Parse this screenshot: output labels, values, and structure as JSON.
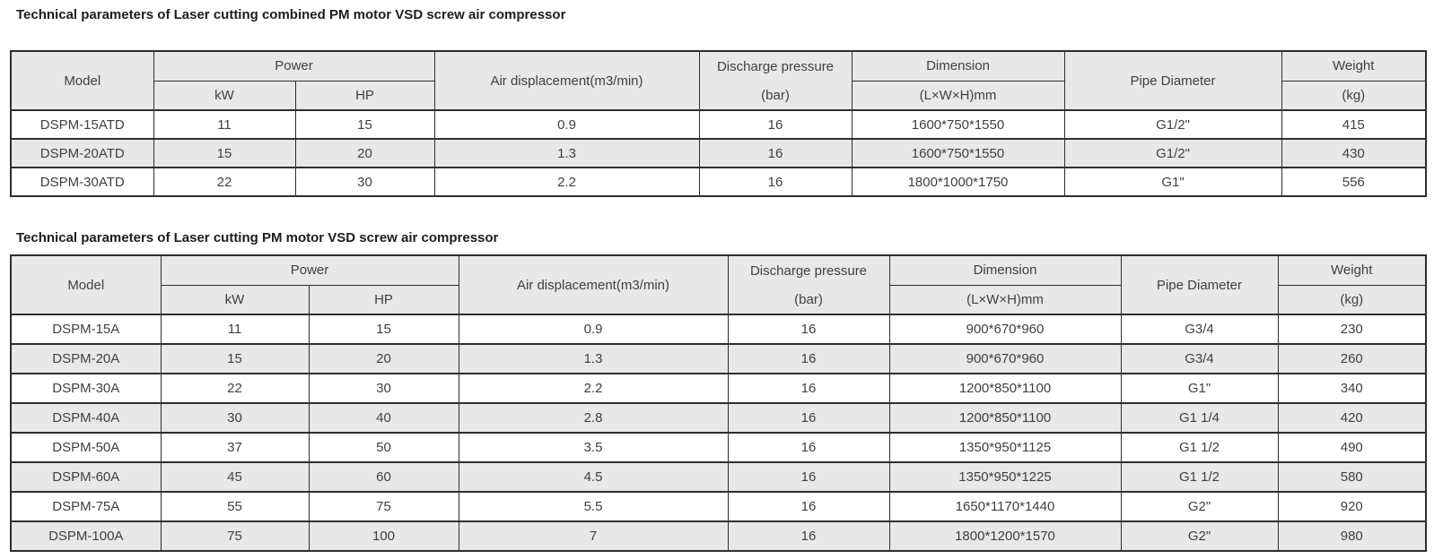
{
  "sections": [
    {
      "title": "Technical parameters of Laser cutting combined PM motor VSD screw air compressor",
      "header": {
        "model": "Model",
        "power": "Power",
        "kw": "kW",
        "hp": "HP",
        "air_displacement": "Air displacement(m3/min)",
        "discharge_pressure": "Discharge pressure",
        "discharge_pressure_unit": "(bar)",
        "dimension": "Dimension",
        "dimension_unit": "(L×W×H)mm",
        "pipe_diameter": "Pipe Diameter",
        "weight": "Weight",
        "weight_unit": "(kg)"
      },
      "rows": [
        [
          "DSPM-15ATD",
          "11",
          "15",
          "0.9",
          "16",
          "1600*750*1550",
          "G1/2\"",
          "415"
        ],
        [
          "DSPM-20ATD",
          "15",
          "20",
          "1.3",
          "16",
          "1600*750*1550",
          "G1/2\"",
          "430"
        ],
        [
          "DSPM-30ATD",
          "22",
          "30",
          "2.2",
          "16",
          "1800*1000*1750",
          "G1\"",
          "556"
        ]
      ]
    },
    {
      "title": "Technical parameters of Laser cutting PM motor VSD screw air compressor",
      "header": {
        "model": "Model",
        "power": "Power",
        "kw": "kW",
        "hp": "HP",
        "air_displacement": "Air displacement(m3/min)",
        "discharge_pressure": "Discharge pressure",
        "discharge_pressure_unit": "(bar)",
        "dimension": "Dimension",
        "dimension_unit": "(L×W×H)mm",
        "pipe_diameter": "Pipe Diameter",
        "weight": "Weight",
        "weight_unit": "(kg)"
      },
      "rows": [
        [
          "DSPM-15A",
          "11",
          "15",
          "0.9",
          "16",
          "900*670*960",
          "G3/4",
          "230"
        ],
        [
          "DSPM-20A",
          "15",
          "20",
          "1.3",
          "16",
          "900*670*960",
          "G3/4",
          "260"
        ],
        [
          "DSPM-30A",
          "22",
          "30",
          "2.2",
          "16",
          "1200*850*1100",
          "G1\"",
          "340"
        ],
        [
          "DSPM-40A",
          "30",
          "40",
          "2.8",
          "16",
          "1200*850*1100",
          "G1 1/4",
          "420"
        ],
        [
          "DSPM-50A",
          "37",
          "50",
          "3.5",
          "16",
          "1350*950*1125",
          "G1 1/2",
          "490"
        ],
        [
          "DSPM-60A",
          "45",
          "60",
          "4.5",
          "16",
          "1350*950*1225",
          "G1 1/2",
          "580"
        ],
        [
          "DSPM-75A",
          "55",
          "75",
          "5.5",
          "16",
          "1650*1170*1440",
          "G2\"",
          "920"
        ],
        [
          "DSPM-100A",
          "75",
          "100",
          "7",
          "16",
          "1800*1200*1570",
          "G2\"",
          "980"
        ]
      ]
    }
  ],
  "colors": {
    "border": "#2e2e2e",
    "header_bg": "#e8e8e8",
    "stripe_bg": "#e8e8e8",
    "text": "#404040",
    "title": "#1d1d1d",
    "page_bg": "#ffffff"
  }
}
